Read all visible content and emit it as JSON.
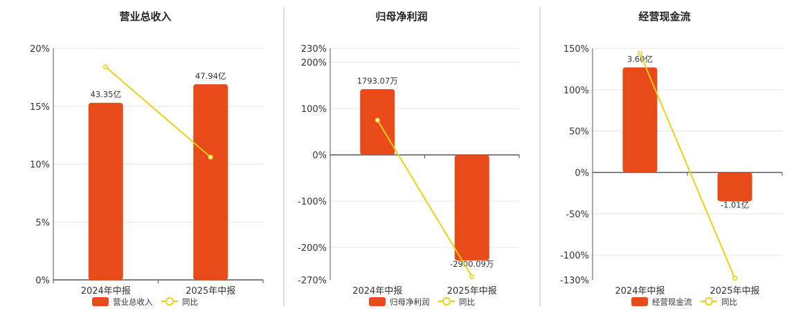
{
  "colors": {
    "bar": "#E84A1A",
    "line": "#F0CF12",
    "grid": "#E6E6E6",
    "axis": "#555555",
    "divider": "#BBBBBB"
  },
  "chart_data": [
    {
      "type": "bar",
      "title": "营业总收入",
      "categories": [
        "2024年中报",
        "2025年中报"
      ],
      "series": [
        {
          "name": "营业总收入",
          "type": "bar",
          "values": [
            15.3,
            16.9
          ],
          "labels": [
            "43.35亿",
            "47.94亿"
          ]
        },
        {
          "name": "同比",
          "type": "line",
          "values": [
            18.4,
            10.6
          ]
        }
      ],
      "ylim": [
        0,
        20
      ],
      "yticks": [
        0,
        5,
        10,
        15,
        20
      ],
      "ytick_labels": [
        "0%",
        "5%",
        "10%",
        "15%",
        "20%"
      ],
      "grid": true,
      "legend": "bottom"
    },
    {
      "type": "bar",
      "title": "归母净利润",
      "categories": [
        "2024年中报",
        "2025年中报"
      ],
      "series": [
        {
          "name": "归母净利润",
          "type": "bar",
          "values": [
            142,
            -228
          ],
          "labels": [
            "1793.07万",
            "-2900.09万"
          ]
        },
        {
          "name": "同比",
          "type": "line",
          "values": [
            75,
            -263
          ]
        }
      ],
      "ylim": [
        -270,
        230
      ],
      "yticks": [
        -270,
        -200,
        -100,
        0,
        100,
        200,
        230
      ],
      "ytick_labels": [
        "-270%",
        "-200%",
        "-100%",
        "0%",
        "100%",
        "200%",
        "230%"
      ],
      "grid": true,
      "legend": "bottom"
    },
    {
      "type": "bar",
      "title": "经营现金流",
      "categories": [
        "2024年中报",
        "2025年中报"
      ],
      "series": [
        {
          "name": "经营现金流",
          "type": "bar",
          "values": [
            127,
            -35
          ],
          "labels": [
            "3.60亿",
            "-1.01亿"
          ]
        },
        {
          "name": "同比",
          "type": "line",
          "values": [
            144,
            -128
          ]
        }
      ],
      "ylim": [
        -130,
        150
      ],
      "yticks": [
        -130,
        -100,
        -50,
        0,
        50,
        100,
        150
      ],
      "ytick_labels": [
        "-130%",
        "-100%",
        "-50%",
        "0%",
        "50%",
        "100%",
        "150%"
      ],
      "grid": true,
      "legend": "bottom"
    }
  ]
}
